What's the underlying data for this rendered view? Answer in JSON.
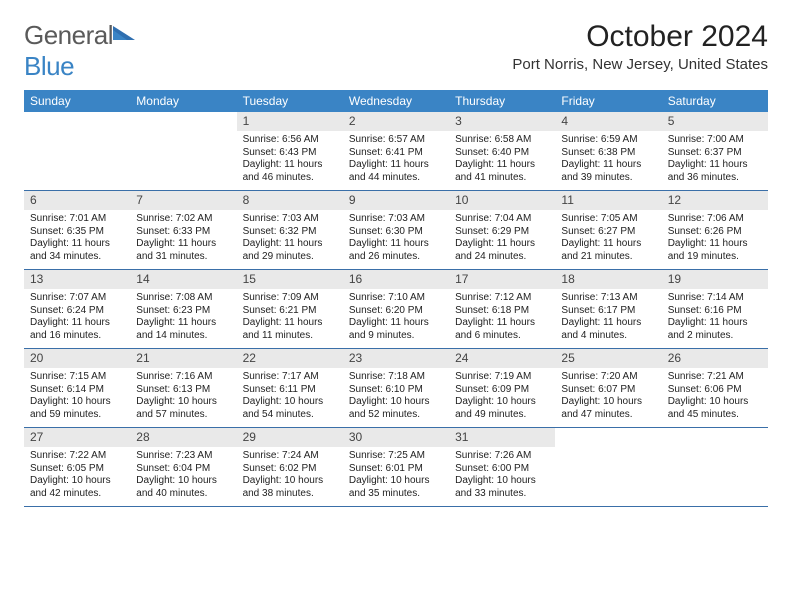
{
  "brand": {
    "word1": "General",
    "word2": "Blue"
  },
  "title": "October 2024",
  "location": "Port Norris, New Jersey, United States",
  "colors": {
    "header_bg": "#3a84c5",
    "header_fg": "#ffffff",
    "daynum_bg": "#e9e9e9",
    "daynum_fg": "#444444",
    "divider": "#3a6fa8",
    "logo_gray": "#5a5a5a",
    "logo_blue": "#3a84c5"
  },
  "fonts": {
    "title_pt": 30,
    "location_pt": 15,
    "header_pt": 12,
    "daynum_pt": 12,
    "body_pt": 10
  },
  "day_headers": [
    "Sunday",
    "Monday",
    "Tuesday",
    "Wednesday",
    "Thursday",
    "Friday",
    "Saturday"
  ],
  "weeks": [
    [
      null,
      null,
      {
        "n": "1",
        "sr": "Sunrise: 6:56 AM",
        "ss": "Sunset: 6:43 PM",
        "dl": "Daylight: 11 hours and 46 minutes."
      },
      {
        "n": "2",
        "sr": "Sunrise: 6:57 AM",
        "ss": "Sunset: 6:41 PM",
        "dl": "Daylight: 11 hours and 44 minutes."
      },
      {
        "n": "3",
        "sr": "Sunrise: 6:58 AM",
        "ss": "Sunset: 6:40 PM",
        "dl": "Daylight: 11 hours and 41 minutes."
      },
      {
        "n": "4",
        "sr": "Sunrise: 6:59 AM",
        "ss": "Sunset: 6:38 PM",
        "dl": "Daylight: 11 hours and 39 minutes."
      },
      {
        "n": "5",
        "sr": "Sunrise: 7:00 AM",
        "ss": "Sunset: 6:37 PM",
        "dl": "Daylight: 11 hours and 36 minutes."
      }
    ],
    [
      {
        "n": "6",
        "sr": "Sunrise: 7:01 AM",
        "ss": "Sunset: 6:35 PM",
        "dl": "Daylight: 11 hours and 34 minutes."
      },
      {
        "n": "7",
        "sr": "Sunrise: 7:02 AM",
        "ss": "Sunset: 6:33 PM",
        "dl": "Daylight: 11 hours and 31 minutes."
      },
      {
        "n": "8",
        "sr": "Sunrise: 7:03 AM",
        "ss": "Sunset: 6:32 PM",
        "dl": "Daylight: 11 hours and 29 minutes."
      },
      {
        "n": "9",
        "sr": "Sunrise: 7:03 AM",
        "ss": "Sunset: 6:30 PM",
        "dl": "Daylight: 11 hours and 26 minutes."
      },
      {
        "n": "10",
        "sr": "Sunrise: 7:04 AM",
        "ss": "Sunset: 6:29 PM",
        "dl": "Daylight: 11 hours and 24 minutes."
      },
      {
        "n": "11",
        "sr": "Sunrise: 7:05 AM",
        "ss": "Sunset: 6:27 PM",
        "dl": "Daylight: 11 hours and 21 minutes."
      },
      {
        "n": "12",
        "sr": "Sunrise: 7:06 AM",
        "ss": "Sunset: 6:26 PM",
        "dl": "Daylight: 11 hours and 19 minutes."
      }
    ],
    [
      {
        "n": "13",
        "sr": "Sunrise: 7:07 AM",
        "ss": "Sunset: 6:24 PM",
        "dl": "Daylight: 11 hours and 16 minutes."
      },
      {
        "n": "14",
        "sr": "Sunrise: 7:08 AM",
        "ss": "Sunset: 6:23 PM",
        "dl": "Daylight: 11 hours and 14 minutes."
      },
      {
        "n": "15",
        "sr": "Sunrise: 7:09 AM",
        "ss": "Sunset: 6:21 PM",
        "dl": "Daylight: 11 hours and 11 minutes."
      },
      {
        "n": "16",
        "sr": "Sunrise: 7:10 AM",
        "ss": "Sunset: 6:20 PM",
        "dl": "Daylight: 11 hours and 9 minutes."
      },
      {
        "n": "17",
        "sr": "Sunrise: 7:12 AM",
        "ss": "Sunset: 6:18 PM",
        "dl": "Daylight: 11 hours and 6 minutes."
      },
      {
        "n": "18",
        "sr": "Sunrise: 7:13 AM",
        "ss": "Sunset: 6:17 PM",
        "dl": "Daylight: 11 hours and 4 minutes."
      },
      {
        "n": "19",
        "sr": "Sunrise: 7:14 AM",
        "ss": "Sunset: 6:16 PM",
        "dl": "Daylight: 11 hours and 2 minutes."
      }
    ],
    [
      {
        "n": "20",
        "sr": "Sunrise: 7:15 AM",
        "ss": "Sunset: 6:14 PM",
        "dl": "Daylight: 10 hours and 59 minutes."
      },
      {
        "n": "21",
        "sr": "Sunrise: 7:16 AM",
        "ss": "Sunset: 6:13 PM",
        "dl": "Daylight: 10 hours and 57 minutes."
      },
      {
        "n": "22",
        "sr": "Sunrise: 7:17 AM",
        "ss": "Sunset: 6:11 PM",
        "dl": "Daylight: 10 hours and 54 minutes."
      },
      {
        "n": "23",
        "sr": "Sunrise: 7:18 AM",
        "ss": "Sunset: 6:10 PM",
        "dl": "Daylight: 10 hours and 52 minutes."
      },
      {
        "n": "24",
        "sr": "Sunrise: 7:19 AM",
        "ss": "Sunset: 6:09 PM",
        "dl": "Daylight: 10 hours and 49 minutes."
      },
      {
        "n": "25",
        "sr": "Sunrise: 7:20 AM",
        "ss": "Sunset: 6:07 PM",
        "dl": "Daylight: 10 hours and 47 minutes."
      },
      {
        "n": "26",
        "sr": "Sunrise: 7:21 AM",
        "ss": "Sunset: 6:06 PM",
        "dl": "Daylight: 10 hours and 45 minutes."
      }
    ],
    [
      {
        "n": "27",
        "sr": "Sunrise: 7:22 AM",
        "ss": "Sunset: 6:05 PM",
        "dl": "Daylight: 10 hours and 42 minutes."
      },
      {
        "n": "28",
        "sr": "Sunrise: 7:23 AM",
        "ss": "Sunset: 6:04 PM",
        "dl": "Daylight: 10 hours and 40 minutes."
      },
      {
        "n": "29",
        "sr": "Sunrise: 7:24 AM",
        "ss": "Sunset: 6:02 PM",
        "dl": "Daylight: 10 hours and 38 minutes."
      },
      {
        "n": "30",
        "sr": "Sunrise: 7:25 AM",
        "ss": "Sunset: 6:01 PM",
        "dl": "Daylight: 10 hours and 35 minutes."
      },
      {
        "n": "31",
        "sr": "Sunrise: 7:26 AM",
        "ss": "Sunset: 6:00 PM",
        "dl": "Daylight: 10 hours and 33 minutes."
      },
      null,
      null
    ]
  ]
}
